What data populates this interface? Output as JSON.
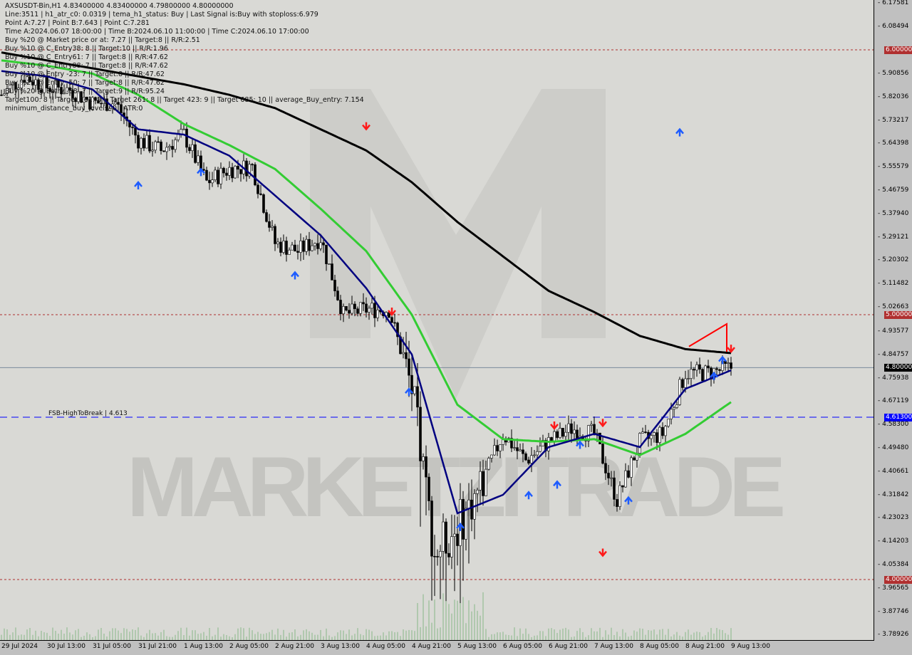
{
  "header": {
    "lines": [
      "AXSUSDT-Bin,H1  4.83400000 4.83400000 4.79800000 4.80000000",
      "Line:3511 | h1_atr_c0: 0.0319 | tema_h1_status: Buy | Last Signal is:Buy with stoploss:6.979",
      "Point A:7.27 | Point B:7.643 | Point C:7.281",
      "Time A:2024.06.07 18:00:00 | Time B:2024.06.10 11:00:00 | Time C:2024.06.10 17:00:00",
      "Buy %20 @ Market price or at: 7.27 || Target:8 || R/R:2.51",
      "Buy %10 @ C_Entry38: 8 || Target:10 || R/R:1.96",
      "Buy %10 @ C_Entry61: 7 || Target:8 || R/R:47.62",
      "Buy %10 @ C_Entry88: 7 || Target:8 || R/R:47.62",
      "Buy %10 @ Entry -23: 7 || Target:8 || R/R:47.62",
      "Buy %20 @ Entry -50: 7 || Target:8 || R/R:47.62",
      "Buy %20 @ Entry -88: 7 || Target:9 || R/R:95.24",
      "Target100: 8 || Target 161: 8 || Target 261: 8 || Target 423: 9 || Target 685: 10 || average_Buy_entry: 7.154",
      "minimum_distance_buy_levels: 0 | ATR:0"
    ]
  },
  "watermark": "MARKETZITRADE",
  "chart_data": {
    "type": "candlestick",
    "symbol": "AXSUSDT-Bin",
    "timeframe": "H1",
    "ylim": [
      3.78926,
      6.17581
    ],
    "y_ticks": [
      "6.17581",
      "6.08494",
      "5.90856",
      "5.82036",
      "5.73217",
      "5.64398",
      "5.55579",
      "5.46759",
      "5.37940",
      "5.29121",
      "5.20302",
      "5.11482",
      "5.02663",
      "4.93577",
      "4.84757",
      "4.75938",
      "4.67119",
      "4.58300",
      "4.49480",
      "4.40661",
      "4.31842",
      "4.23023",
      "4.14203",
      "4.05384",
      "3.96565",
      "3.87746",
      "3.78926"
    ],
    "x_ticks": [
      "29 Jul 2024",
      "30 Jul 13:00",
      "31 Jul 05:00",
      "31 Jul 21:00",
      "1 Aug 13:00",
      "2 Aug 05:00",
      "2 Aug 21:00",
      "3 Aug 13:00",
      "4 Aug 05:00",
      "4 Aug 21:00",
      "5 Aug 13:00",
      "6 Aug 05:00",
      "6 Aug 21:00",
      "7 Aug 13:00",
      "8 Aug 05:00",
      "8 Aug 21:00",
      "9 Aug 13:00"
    ],
    "close_path_8h": [
      5.83,
      5.9,
      5.86,
      5.85,
      5.8,
      5.8,
      5.66,
      5.62,
      5.68,
      5.5,
      5.55,
      5.56,
      5.27,
      5.24,
      5.29,
      5.0,
      5.02,
      5.02,
      4.72,
      4.1,
      4.2,
      4.35,
      4.55,
      4.45,
      4.52,
      4.57,
      4.55,
      4.3,
      4.52,
      4.55,
      4.78,
      4.78,
      4.8
    ],
    "ma_black_16h": [
      5.99,
      5.96,
      5.93,
      5.9,
      5.87,
      5.83,
      5.78,
      5.7,
      5.62,
      5.5,
      5.35,
      5.22,
      5.09,
      5.01,
      4.92,
      4.87,
      4.855
    ],
    "ma_green_16h": [
      5.96,
      5.94,
      5.91,
      5.83,
      5.72,
      5.64,
      5.55,
      5.4,
      5.24,
      5.0,
      4.66,
      4.53,
      4.52,
      4.53,
      4.47,
      4.55,
      4.67
    ],
    "ma_navy_16h": [
      5.92,
      5.9,
      5.85,
      5.7,
      5.68,
      5.6,
      5.45,
      5.3,
      5.1,
      4.85,
      4.25,
      4.32,
      4.5,
      4.55,
      4.5,
      4.72,
      4.79
    ],
    "levels": [
      {
        "price": 6.0,
        "label": "6.00000",
        "color": "#b03030",
        "style": "dotted"
      },
      {
        "price": 5.0,
        "label": "5.00000",
        "color": "#b03030",
        "style": "dotted"
      },
      {
        "price": 4.0,
        "label": "4.00000",
        "color": "#b03030",
        "style": "dotted"
      },
      {
        "price": 4.613,
        "label": "4.61300",
        "color": "#0000ff",
        "style": "dashed"
      },
      {
        "price": 4.8,
        "label": "4.80000",
        "color": "#000000",
        "style": "solid"
      }
    ],
    "fsb_label": "FSB-HighToBreak | 4.613",
    "colors": {
      "up": "#000000",
      "down": "#000000",
      "ma200": "#000000",
      "ma_green": "#33cc33",
      "ma_navy": "#000080",
      "trend": "#ff0000"
    }
  }
}
